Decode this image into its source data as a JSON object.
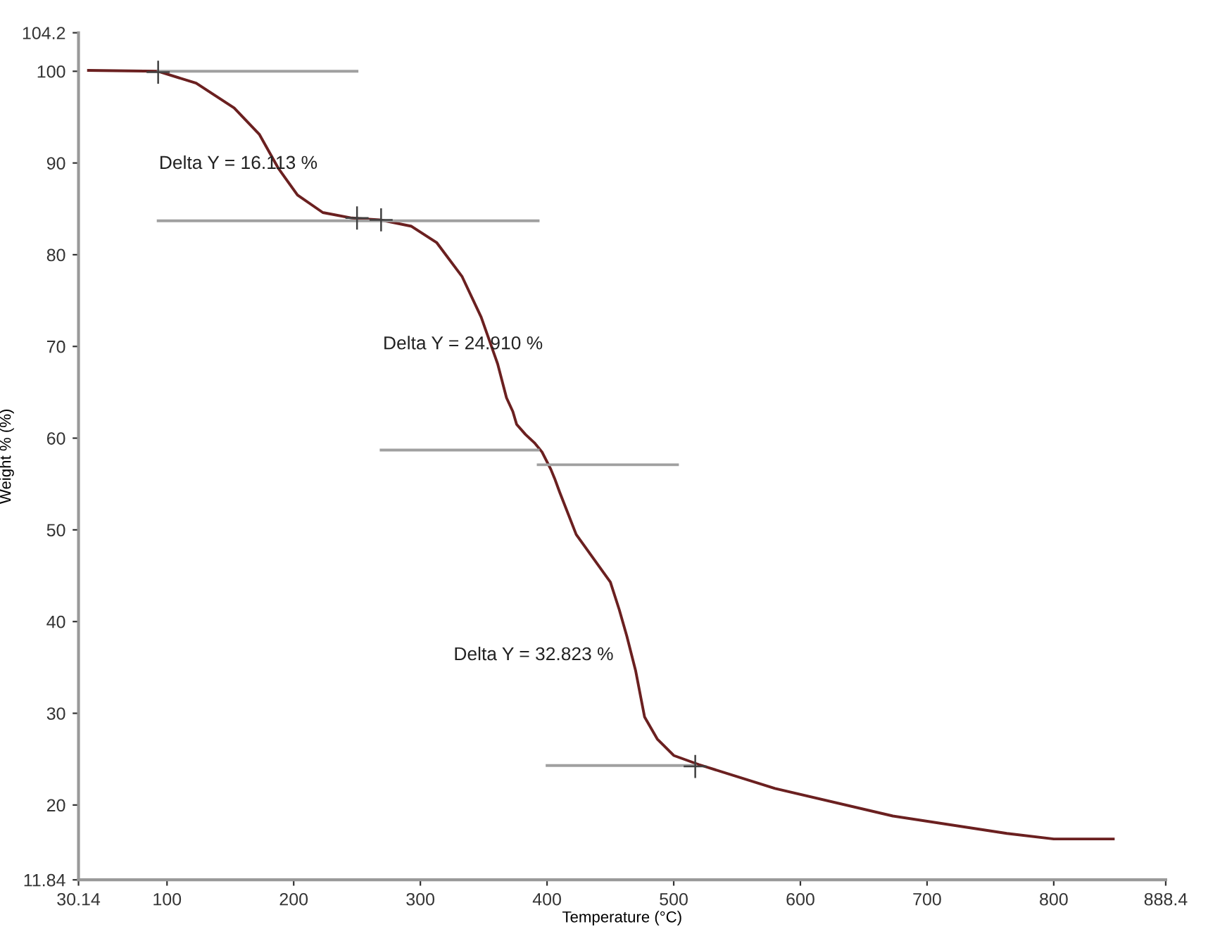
{
  "chart_data": {
    "type": "line",
    "xlabel": "Temperature (°C)",
    "ylabel": "Weight % (%)",
    "xlim": [
      30.14,
      888.4
    ],
    "ylim": [
      11.84,
      104.2
    ],
    "xticks": [
      30.14,
      100,
      200,
      300,
      400,
      500,
      600,
      700,
      800,
      888.4
    ],
    "yticks": [
      11.84,
      20,
      30,
      40,
      50,
      60,
      70,
      80,
      90,
      100,
      104.2
    ],
    "grid": false,
    "legend": false,
    "series": [
      {
        "color": "#6b2020",
        "line_style": "solid",
        "marker": "none",
        "x": [
          38,
          93,
          123,
          153,
          173,
          188,
          203,
          223,
          246,
          268,
          293,
          313,
          333,
          348,
          361,
          368,
          373,
          376,
          383,
          390,
          396,
          403,
          406,
          410,
          423,
          450,
          457,
          463,
          470,
          477,
          487,
          500,
          520,
          580,
          673,
          763,
          800,
          847
        ],
        "values": [
          100.1,
          100,
          98.7,
          96.0,
          93.1,
          89.4,
          86.5,
          84.6,
          84.0,
          83.8,
          83.1,
          81.3,
          77.6,
          73.2,
          68.1,
          64.4,
          62.9,
          61.5,
          60.4,
          59.5,
          58.5,
          56.6,
          55.6,
          54.1,
          49.5,
          44.3,
          41.3,
          38.4,
          34.6,
          29.6,
          27.2,
          25.4,
          24.4,
          21.8,
          18.8,
          16.9,
          16.3,
          16.3
        ]
      },
      {
        "type": "line",
        "color": "#a0a0a0",
        "line_style": "solid",
        "marker": "none",
        "x": [
          93,
          250
        ],
        "values": [
          100,
          100
        ]
      },
      {
        "type": "line",
        "color": "#a0a0a0",
        "line_style": "solid",
        "marker": "none",
        "x": [
          93,
          393
        ],
        "values": [
          83.7,
          83.7
        ]
      },
      {
        "type": "line",
        "color": "#a0a0a0",
        "line_style": "solid",
        "marker": "none",
        "x": [
          269,
          393
        ],
        "values": [
          58.7,
          58.7
        ]
      },
      {
        "type": "line",
        "color": "#a0a0a0",
        "line_style": "solid",
        "marker": "none",
        "x": [
          393,
          503
        ],
        "values": [
          57.1,
          57.1
        ]
      },
      {
        "type": "line",
        "color": "#a0a0a0",
        "line_style": "solid",
        "marker": "none",
        "x": [
          400,
          517
        ],
        "values": [
          24.3,
          24.3
        ]
      },
      {
        "type": "scatter",
        "color": "#404040",
        "marker": "cross",
        "x": [
          93,
          250,
          269,
          517
        ],
        "values": [
          99.9,
          84.0,
          83.8,
          24.2
        ]
      }
    ],
    "annotations": [
      "Delta Y = 16.113 %",
      "Delta Y = 24.910 %",
      "Delta Y = 32.823 %"
    ]
  }
}
